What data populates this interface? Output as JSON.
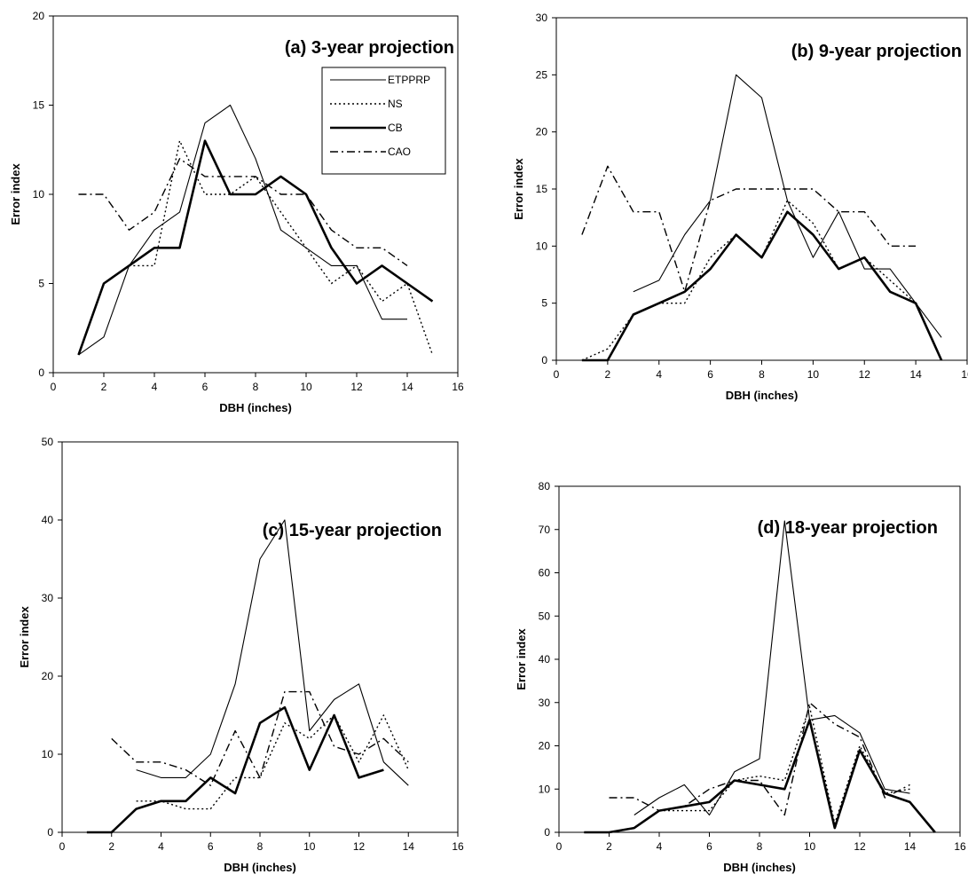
{
  "chart_data": [
    {
      "type": "line",
      "title": "(a) 3-year projection",
      "xlabel": "DBH (inches)",
      "ylabel": "Error index",
      "xlim": [
        0,
        16
      ],
      "ylim": [
        0,
        20
      ],
      "xticks": [
        0,
        2,
        4,
        6,
        8,
        10,
        12,
        14,
        16
      ],
      "yticks": [
        0,
        5,
        10,
        15,
        20
      ],
      "grid": false,
      "legend": [
        "ETPPRP",
        "NS",
        "CB",
        "CAO"
      ],
      "series": [
        {
          "name": "ETPPRP",
          "x": [
            1,
            2,
            3,
            4,
            5,
            6,
            7,
            8,
            9,
            10,
            11,
            12,
            13,
            14
          ],
          "y": [
            1,
            2,
            6,
            8,
            9,
            14,
            15,
            12,
            8,
            7,
            6,
            6,
            3,
            3
          ]
        },
        {
          "name": "NS",
          "x": [
            1,
            2,
            3,
            4,
            5,
            6,
            7,
            8,
            9,
            10,
            11,
            12,
            13,
            14,
            15
          ],
          "y": [
            1,
            5,
            6,
            6,
            13,
            10,
            10,
            11,
            9,
            7,
            5,
            6,
            4,
            5,
            1
          ]
        },
        {
          "name": "CB",
          "x": [
            1,
            2,
            3,
            4,
            5,
            6,
            7,
            8,
            9,
            10,
            11,
            12,
            13,
            14,
            15
          ],
          "y": [
            1,
            5,
            6,
            7,
            7,
            13,
            10,
            10,
            11,
            10,
            7,
            5,
            6,
            5,
            4
          ]
        },
        {
          "name": "CAO",
          "x": [
            1,
            2,
            3,
            4,
            5,
            6,
            7,
            8,
            9,
            10,
            11,
            12,
            13,
            14
          ],
          "y": [
            10,
            10,
            8,
            9,
            12,
            11,
            11,
            11,
            10,
            10,
            8,
            7,
            7,
            6
          ]
        }
      ]
    },
    {
      "type": "line",
      "title": "(b) 9-year projection",
      "xlabel": "DBH (inches)",
      "ylabel": "Error index",
      "xlim": [
        0,
        16
      ],
      "ylim": [
        0,
        30
      ],
      "xticks": [
        0,
        2,
        4,
        6,
        8,
        10,
        12,
        14,
        16
      ],
      "yticks": [
        0,
        5,
        10,
        15,
        20,
        25,
        30
      ],
      "grid": false,
      "series": [
        {
          "name": "ETPPRP",
          "x": [
            3,
            4,
            5,
            6,
            7,
            8,
            9,
            10,
            11,
            12,
            13,
            14,
            15
          ],
          "y": [
            6,
            7,
            11,
            14,
            25,
            23,
            14,
            9,
            13,
            8,
            8,
            5,
            2
          ]
        },
        {
          "name": "NS",
          "x": [
            1,
            2,
            3,
            4,
            5,
            6,
            7,
            8,
            9,
            10,
            11,
            12,
            13,
            14,
            15
          ],
          "y": [
            0,
            1,
            4,
            5,
            5,
            9,
            11,
            9,
            14,
            12,
            8,
            9,
            7,
            5,
            0
          ]
        },
        {
          "name": "CB",
          "x": [
            1,
            2,
            3,
            4,
            5,
            6,
            7,
            8,
            9,
            10,
            11,
            12,
            13,
            14,
            15
          ],
          "y": [
            0,
            0,
            4,
            5,
            6,
            8,
            11,
            9,
            13,
            11,
            8,
            9,
            6,
            5,
            0
          ]
        },
        {
          "name": "CAO",
          "x": [
            1,
            2,
            3,
            4,
            5,
            6,
            7,
            8,
            9,
            10,
            11,
            12,
            13,
            14
          ],
          "y": [
            11,
            17,
            13,
            13,
            6,
            14,
            15,
            15,
            15,
            15,
            13,
            13,
            10,
            10
          ]
        }
      ]
    },
    {
      "type": "line",
      "title": "(c) 15-year projection",
      "xlabel": "DBH (inches)",
      "ylabel": "Error index",
      "xlim": [
        0,
        16
      ],
      "ylim": [
        0,
        50
      ],
      "xticks": [
        0,
        2,
        4,
        6,
        8,
        10,
        12,
        14,
        16
      ],
      "yticks": [
        0,
        10,
        20,
        30,
        40,
        50
      ],
      "grid": false,
      "series": [
        {
          "name": "ETPPRP",
          "x": [
            3,
            4,
            5,
            6,
            7,
            8,
            9,
            10,
            11,
            12,
            13,
            14
          ],
          "y": [
            8,
            7,
            7,
            10,
            19,
            35,
            40,
            13,
            17,
            19,
            9,
            6
          ]
        },
        {
          "name": "NS",
          "x": [
            3,
            4,
            5,
            6,
            7,
            8,
            9,
            10,
            11,
            12,
            13,
            14
          ],
          "y": [
            4,
            4,
            3,
            3,
            7,
            7,
            14,
            12,
            15,
            9,
            15,
            8
          ]
        },
        {
          "name": "CB",
          "x": [
            1,
            2,
            3,
            4,
            5,
            6,
            7,
            8,
            9,
            10,
            11,
            12,
            13
          ],
          "y": [
            0,
            0,
            3,
            4,
            4,
            7,
            5,
            14,
            16,
            8,
            15,
            7,
            8
          ]
        },
        {
          "name": "CAO",
          "x": [
            2,
            3,
            4,
            5,
            6,
            7,
            8,
            9,
            10,
            11,
            12,
            13,
            14
          ],
          "y": [
            12,
            9,
            9,
            8,
            6,
            13,
            7,
            18,
            18,
            11,
            10,
            12,
            9
          ]
        }
      ]
    },
    {
      "type": "line",
      "title": "(d) 18-year projection",
      "xlabel": "DBH (inches)",
      "ylabel": "Error index",
      "xlim": [
        0,
        16
      ],
      "ylim": [
        0,
        80
      ],
      "xticks": [
        0,
        2,
        4,
        6,
        8,
        10,
        12,
        14,
        16
      ],
      "yticks": [
        0,
        10,
        20,
        30,
        40,
        50,
        60,
        70,
        80
      ],
      "grid": false,
      "series": [
        {
          "name": "ETPPRP",
          "x": [
            3,
            4,
            5,
            6,
            7,
            8,
            9,
            10,
            11,
            12,
            13,
            14
          ],
          "y": [
            4,
            8,
            11,
            4,
            14,
            17,
            72,
            26,
            27,
            23,
            10,
            9
          ]
        },
        {
          "name": "NS",
          "x": [
            4,
            5,
            6,
            7,
            8,
            9,
            10,
            11,
            12,
            13,
            14
          ],
          "y": [
            5,
            5,
            5,
            12,
            13,
            12,
            29,
            2,
            20,
            9,
            10
          ]
        },
        {
          "name": "CB",
          "x": [
            1,
            2,
            3,
            4,
            5,
            6,
            7,
            8,
            9,
            10,
            11,
            12,
            13,
            14,
            15
          ],
          "y": [
            0,
            0,
            1,
            5,
            6,
            7,
            12,
            11,
            10,
            26,
            1,
            19,
            9,
            7,
            0
          ]
        },
        {
          "name": "CAO",
          "x": [
            2,
            3,
            4,
            5,
            6,
            7,
            8,
            9,
            10,
            11,
            12,
            13,
            14
          ],
          "y": [
            8,
            8,
            5,
            6,
            10,
            12,
            12,
            4,
            30,
            25,
            22,
            8,
            11
          ]
        }
      ]
    }
  ]
}
